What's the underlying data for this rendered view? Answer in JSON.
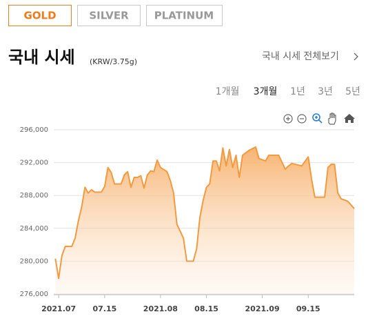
{
  "tabs": [
    "GOLD",
    "SILVER",
    "PLATINUM"
  ],
  "header": {
    "title": "국내 시세",
    "unit": "(KRW/3.75g)",
    "link": "국내 시세 전체보기"
  },
  "periods": [
    "1개월",
    "3개월",
    "1년",
    "3년",
    "5년"
  ],
  "chart_data": {
    "type": "area",
    "x": [
      -1,
      0,
      1,
      2,
      4,
      5,
      6,
      7,
      8,
      9,
      10,
      11,
      13,
      14,
      15,
      16,
      17,
      19,
      20,
      21,
      22,
      23,
      24,
      25,
      26,
      27,
      28,
      29,
      30,
      31,
      33,
      34,
      35,
      36,
      38,
      39,
      41,
      42,
      43,
      44,
      45,
      46,
      47,
      48,
      49,
      50,
      51,
      52,
      53,
      54,
      55,
      56,
      58,
      60,
      61,
      63,
      64,
      67,
      69,
      70,
      71,
      74,
      76,
      77,
      78,
      81,
      82,
      83,
      84,
      85,
      86,
      88,
      90
    ],
    "values": [
      280300,
      277900,
      280700,
      281800,
      281800,
      282800,
      284900,
      286600,
      289000,
      288300,
      288700,
      288400,
      288400,
      289100,
      291400,
      290800,
      289400,
      289400,
      290500,
      290900,
      289000,
      290200,
      290200,
      290400,
      288900,
      290500,
      291000,
      290900,
      292300,
      291400,
      290900,
      289800,
      288300,
      284500,
      282800,
      280000,
      280000,
      281500,
      285300,
      287400,
      289000,
      289400,
      292200,
      292200,
      291000,
      293800,
      291600,
      293600,
      291400,
      292900,
      290200,
      292900,
      293500,
      293900,
      292500,
      292200,
      292900,
      292900,
      291200,
      291600,
      291900,
      291600,
      292700,
      290000,
      287800,
      287800,
      291400,
      291800,
      291800,
      288300,
      287600,
      287300,
      286400
    ],
    "color": "#f29a3f",
    "xlim": [
      -1.5,
      90
    ],
    "ylim": [
      276000,
      296000
    ],
    "yticks": [
      {
        "value": 276000,
        "label": "276,000"
      },
      {
        "value": 280000,
        "label": "280,000"
      },
      {
        "value": 284000,
        "label": "284,000"
      },
      {
        "value": 288000,
        "label": "288,000"
      },
      {
        "value": 292000,
        "label": "292,000"
      },
      {
        "value": 296000,
        "label": "296,000"
      }
    ],
    "xticks": [
      {
        "value": 0,
        "label": "2021.07"
      },
      {
        "value": 14,
        "label": "07.15"
      },
      {
        "value": 31,
        "label": "2021.08"
      },
      {
        "value": 45,
        "label": "08.15"
      },
      {
        "value": 62,
        "label": "2021.09"
      },
      {
        "value": 76,
        "label": "09.15"
      }
    ],
    "grid": true
  }
}
